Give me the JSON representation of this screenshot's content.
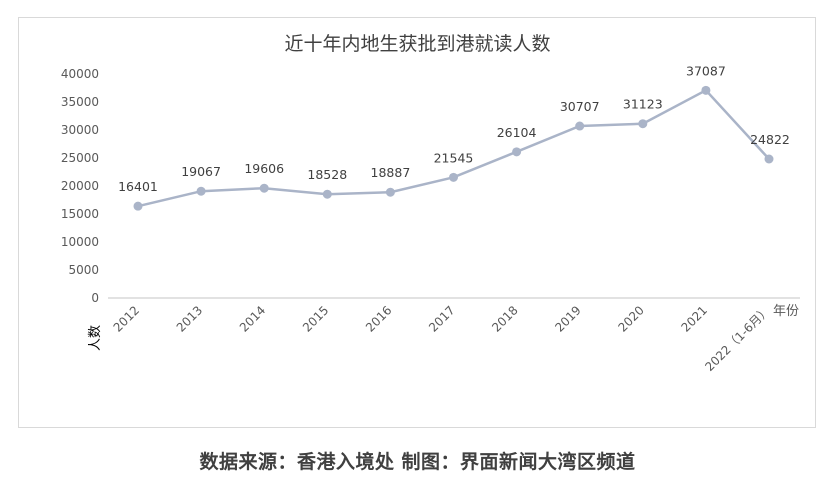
{
  "chart_data": {
    "type": "line",
    "title": "近十年内地生获批到港就读人数",
    "xlabel": "年份",
    "ylabel": "人数",
    "categories": [
      "2012",
      "2013",
      "2014",
      "2015",
      "2016",
      "2017",
      "2018",
      "2019",
      "2020",
      "2021",
      "2022（1-6月）"
    ],
    "series": [
      {
        "name": "人数",
        "values": [
          16401,
          19067,
          19606,
          18528,
          18887,
          21545,
          26104,
          30707,
          31123,
          37087,
          24822
        ],
        "color": "#aab4c8"
      }
    ],
    "yticks": [
      "0",
      "5000",
      "10000",
      "15000",
      "20000",
      "25000",
      "30000",
      "35000",
      "40000"
    ],
    "ylim": [
      0,
      40000
    ],
    "grid": false,
    "legend": "none",
    "data_labels": true
  },
  "footer": "数据来源：香港入境处 制图：界面新闻大湾区频道"
}
